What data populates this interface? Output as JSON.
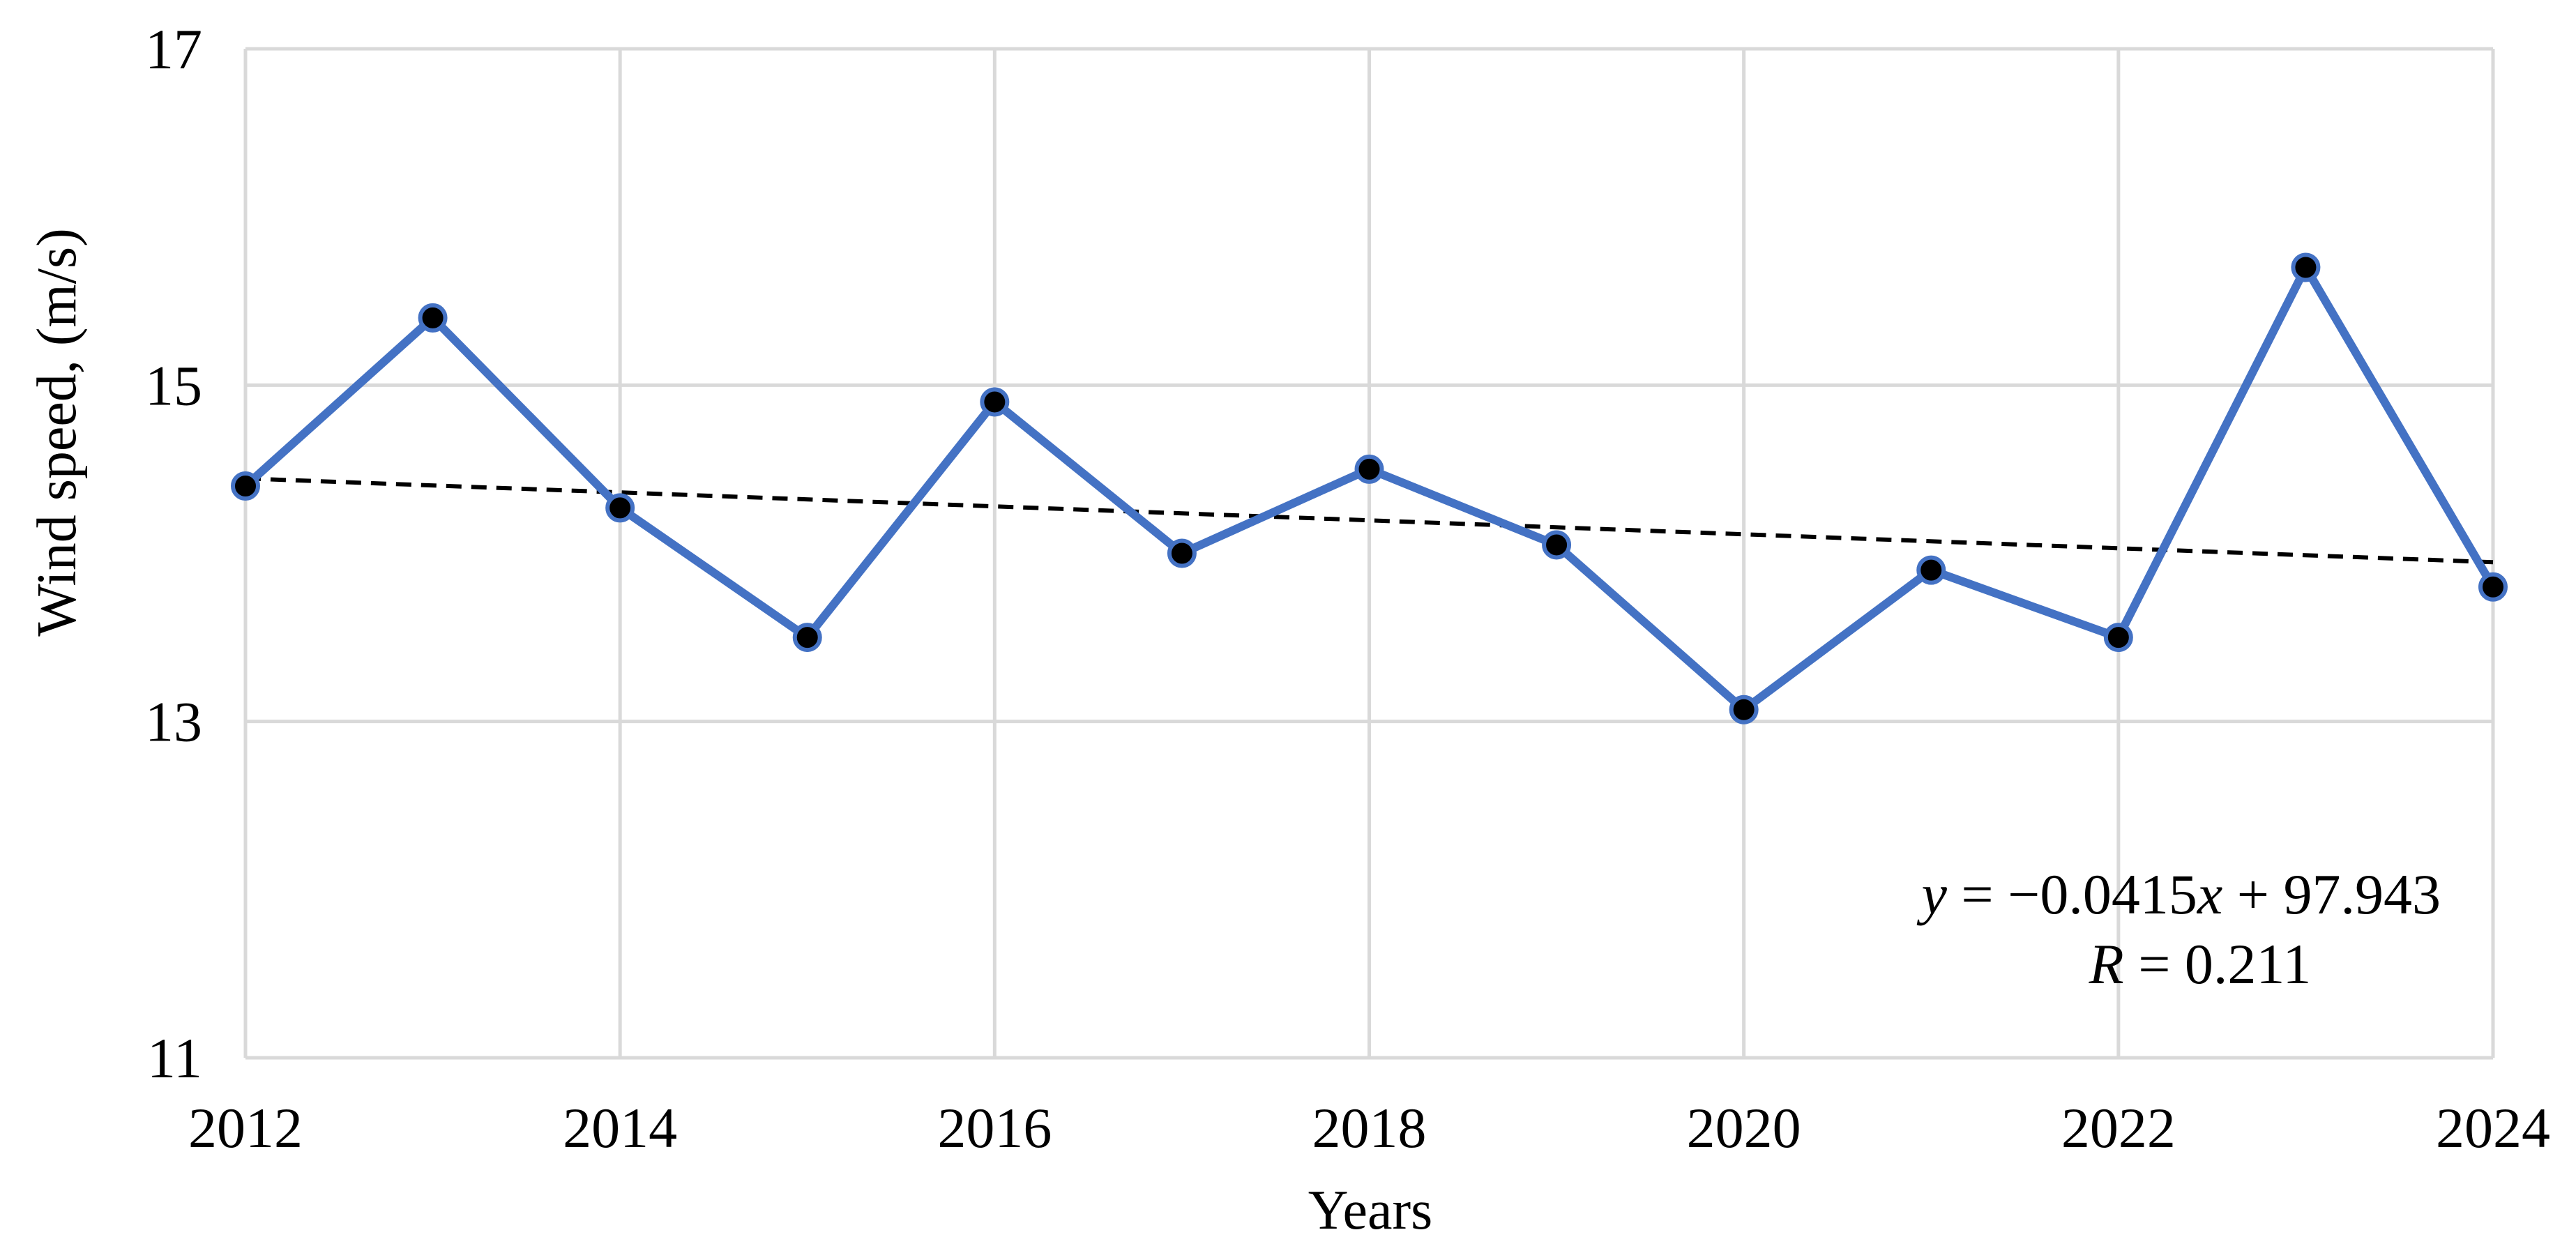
{
  "chart_data": {
    "type": "line",
    "title": "",
    "xlabel": "Years",
    "ylabel": "Wind speed, (m/s)",
    "x_ticks": [
      "2012",
      "2014",
      "2016",
      "2018",
      "2020",
      "2022",
      "2024"
    ],
    "y_ticks": [
      "11",
      "13",
      "15",
      "17"
    ],
    "xlim": [
      2012,
      2024
    ],
    "ylim": [
      11,
      17
    ],
    "grid": true,
    "series": [
      {
        "x": [
          2012,
          2013,
          2014,
          2015,
          2016,
          2017,
          2018,
          2019,
          2020,
          2021,
          2022,
          2023,
          2024
        ],
        "y": [
          14.4,
          15.4,
          14.27,
          13.5,
          14.9,
          14.0,
          14.5,
          14.05,
          13.07,
          13.9,
          13.5,
          15.7,
          13.8
        ],
        "color": "#4472c4",
        "marker_color": "#000000"
      }
    ],
    "trendline": {
      "slope": -0.0415,
      "intercept": 97.943,
      "style": "dashed",
      "color": "#000000"
    },
    "annotations": {
      "equation": {
        "italic": "y",
        "rest": " = −0.0415",
        "italic2": "x",
        "rest2": " + 97.943"
      },
      "r_value": {
        "italic": "R",
        "rest": " = 0.211"
      }
    }
  }
}
